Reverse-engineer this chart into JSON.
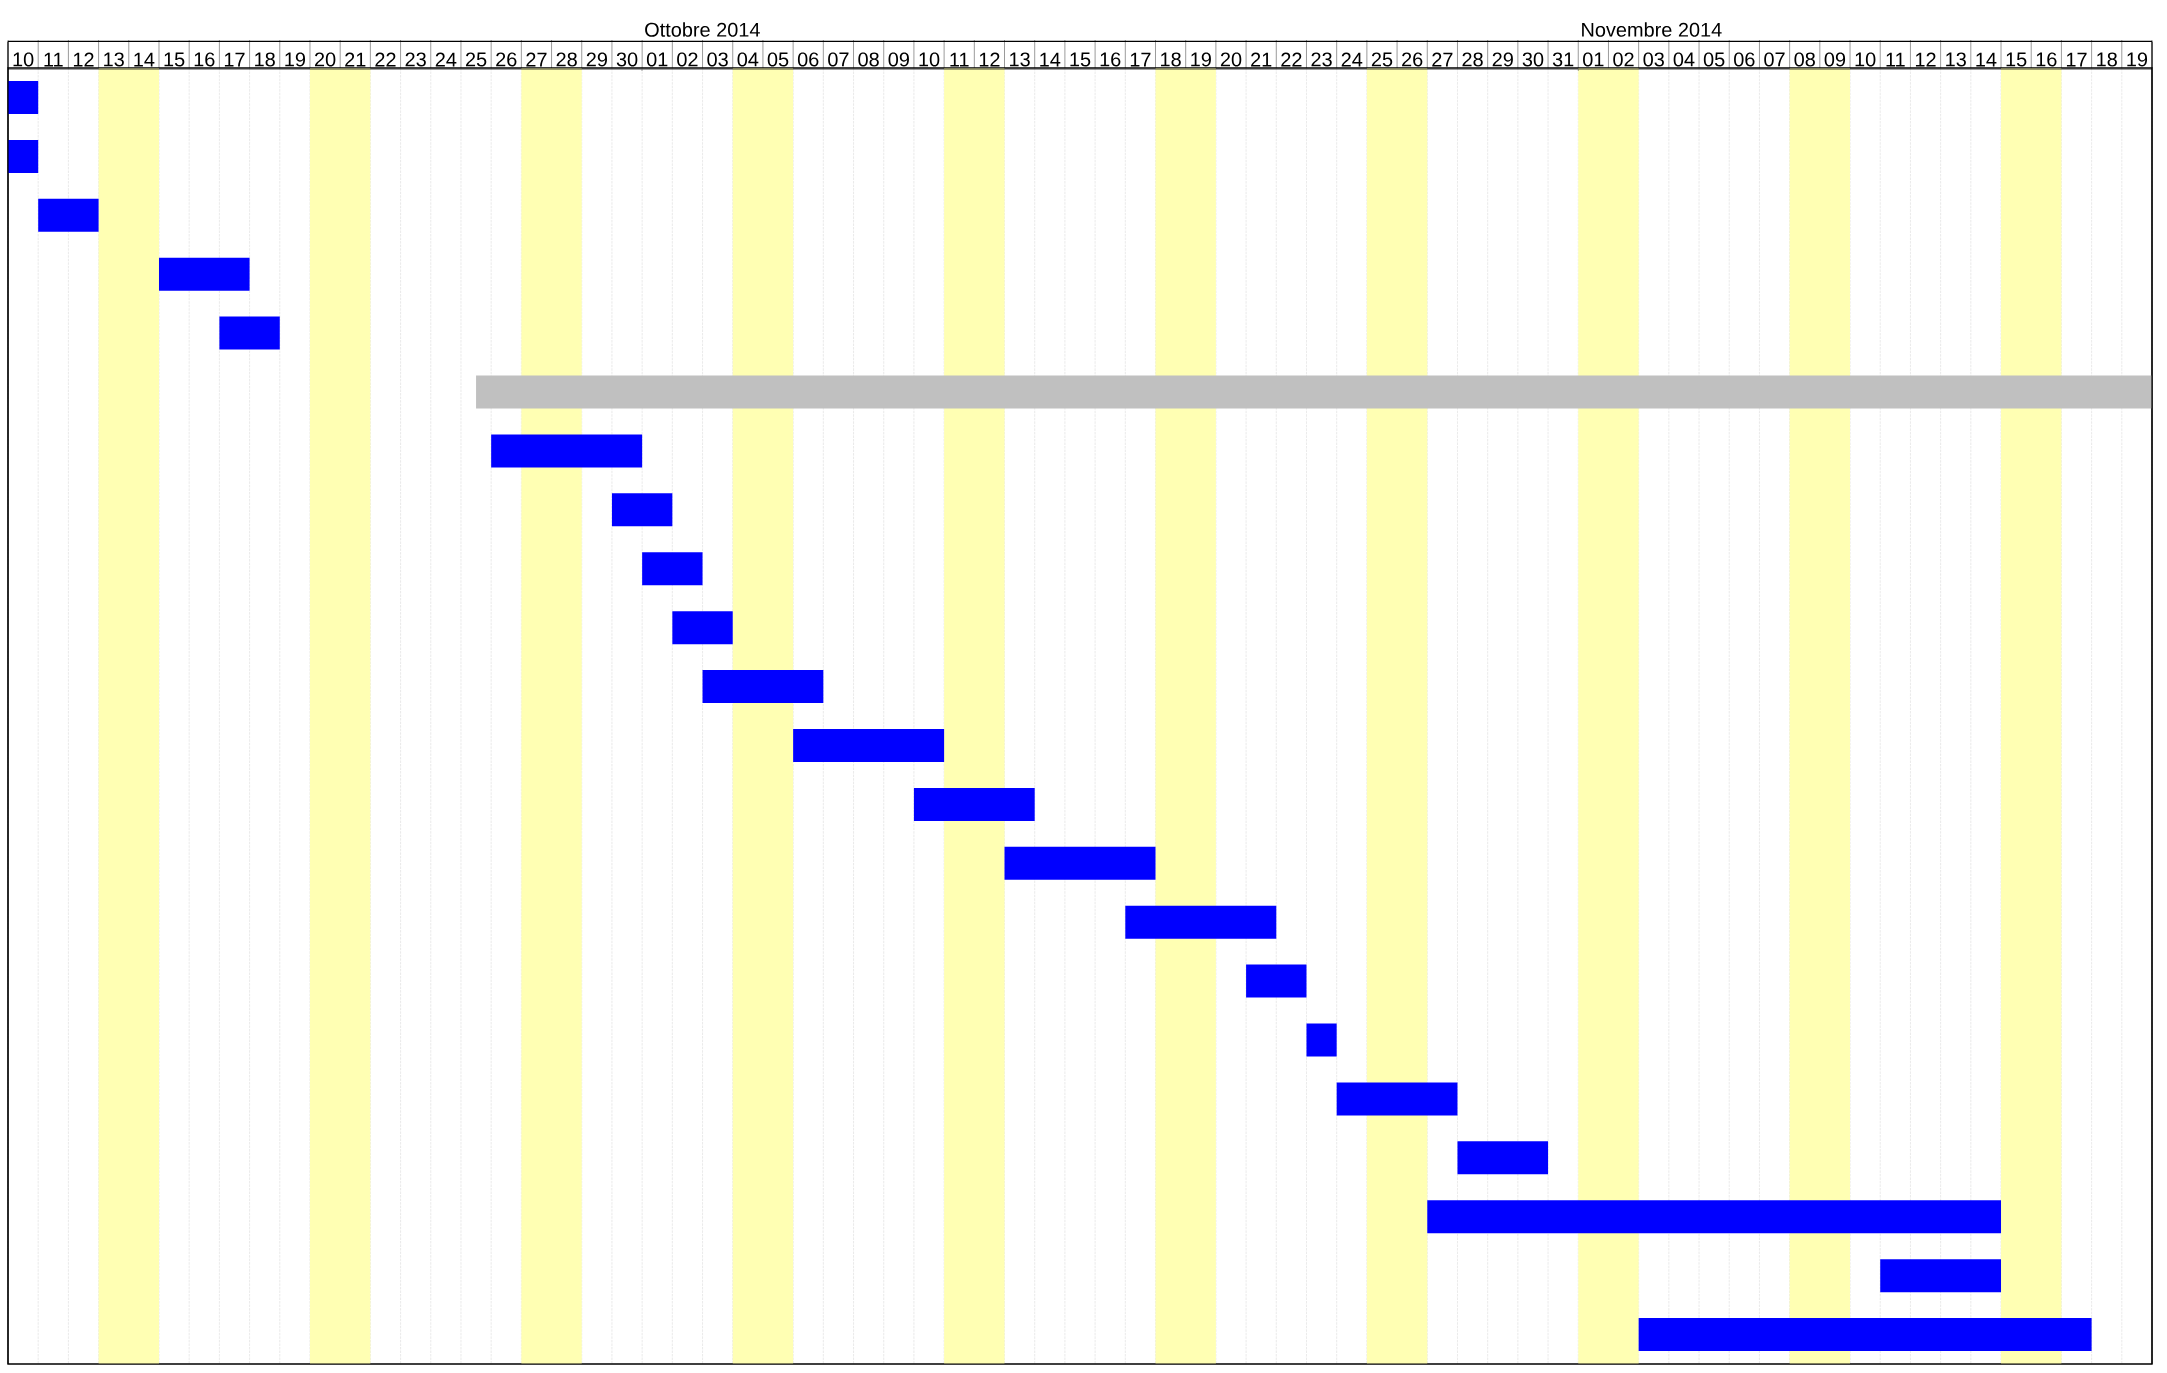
{
  "chart_data": {
    "type": "bar",
    "orientation": "horizontal",
    "categories": [
      null,
      null,
      null,
      null,
      null,
      null,
      null,
      null,
      null,
      null,
      null,
      null,
      null,
      null,
      null,
      null,
      null,
      null,
      null,
      null,
      null,
      null
    ],
    "base": [
      16323,
      16323,
      16324,
      16328,
      16330,
      16338.5,
      16339,
      16343,
      16344,
      16345,
      16346,
      16349,
      16353,
      16356,
      16360,
      16364,
      16366,
      16367,
      16371,
      16370,
      16385,
      16377
    ],
    "values": [
      1,
      1,
      2,
      3,
      2,
      55.5,
      5,
      2,
      2,
      2,
      4,
      5,
      4,
      5,
      5,
      2,
      1,
      4,
      3,
      19,
      4,
      15
    ],
    "colors": [
      "#0000ff",
      "#0000ff",
      "#0000ff",
      "#0000ff",
      "#0000ff",
      "#c0c0c0",
      "#0000ff",
      "#0000ff",
      "#0000ff",
      "#0000ff",
      "#0000ff",
      "#0000ff",
      "#0000ff",
      "#0000ff",
      "#0000ff",
      "#0000ff",
      "#0000ff",
      "#0000ff",
      "#0000ff",
      "#0000ff",
      "#0000ff",
      "#0000ff"
    ],
    "xlim": [
      "2014-09-10",
      "2014-11-20"
    ],
    "xticks": [
      {
        "value": "2014-09-10T12:00",
        "label": "10"
      },
      {
        "value": "2014-09-11T12:00",
        "label": "11"
      },
      {
        "value": "2014-09-12T12:00",
        "label": "12"
      },
      {
        "value": "2014-09-13T12:00",
        "label": "13"
      },
      {
        "value": "2014-09-14T12:00",
        "label": "14"
      },
      {
        "value": "2014-09-15T12:00",
        "label": "15"
      },
      {
        "value": "2014-09-16T12:00",
        "label": "16"
      },
      {
        "value": "2014-09-17T12:00",
        "label": "17"
      },
      {
        "value": "2014-09-18T12:00",
        "label": "18"
      },
      {
        "value": "2014-09-19T12:00",
        "label": "19"
      },
      {
        "value": "2014-09-20T12:00",
        "label": "20"
      },
      {
        "value": "2014-09-21T12:00",
        "label": "21"
      },
      {
        "value": "2014-09-22T12:00",
        "label": "22"
      },
      {
        "value": "2014-09-23T12:00",
        "label": "23"
      },
      {
        "value": "2014-09-24T12:00",
        "label": "24"
      },
      {
        "value": "2014-09-25T12:00",
        "label": "25"
      },
      {
        "value": "2014-09-26T12:00",
        "label": "26"
      },
      {
        "value": "2014-09-27T12:00",
        "label": "27"
      },
      {
        "value": "2014-09-28T12:00",
        "label": "28"
      },
      {
        "value": "2014-09-29T12:00",
        "label": "29"
      },
      {
        "value": "2014-09-30T12:00",
        "label": "30"
      },
      {
        "value": "2014-10-01T12:00",
        "label": "01"
      },
      {
        "value": "2014-10-02T12:00",
        "label": "02"
      },
      {
        "value": "2014-10-03T12:00",
        "label": "03"
      },
      {
        "value": "2014-10-04T12:00",
        "label": "04"
      },
      {
        "value": "2014-10-05T12:00",
        "label": "05"
      },
      {
        "value": "2014-10-06T12:00",
        "label": "06"
      },
      {
        "value": "2014-10-07T12:00",
        "label": "07"
      },
      {
        "value": "2014-10-08T12:00",
        "label": "08"
      },
      {
        "value": "2014-10-09T12:00",
        "label": "09"
      },
      {
        "value": "2014-10-10T12:00",
        "label": "10"
      },
      {
        "value": "2014-10-11T12:00",
        "label": "11"
      },
      {
        "value": "2014-10-12T12:00",
        "label": "12"
      },
      {
        "value": "2014-10-13T12:00",
        "label": "13"
      },
      {
        "value": "2014-10-14T12:00",
        "label": "14"
      },
      {
        "value": "2014-10-15T12:00",
        "label": "15"
      },
      {
        "value": "2014-10-16T12:00",
        "label": "16"
      },
      {
        "value": "2014-10-17T12:00",
        "label": "17"
      },
      {
        "value": "2014-10-18T12:00",
        "label": "18"
      },
      {
        "value": "2014-10-19T12:00",
        "label": "19"
      },
      {
        "value": "2014-10-20T12:00",
        "label": "20"
      },
      {
        "value": "2014-10-21T12:00",
        "label": "21"
      },
      {
        "value": "2014-10-22T12:00",
        "label": "22"
      },
      {
        "value": "2014-10-23T12:00",
        "label": "23"
      },
      {
        "value": "2014-10-24T12:00",
        "label": "24"
      },
      {
        "value": "2014-10-25T12:00",
        "label": "25"
      },
      {
        "value": "2014-10-26T12:00",
        "label": "26"
      },
      {
        "value": "2014-10-27T12:00",
        "label": "27"
      },
      {
        "value": "2014-10-28T12:00",
        "label": "28"
      },
      {
        "value": "2014-10-29T12:00",
        "label": "29"
      },
      {
        "value": "2014-10-30T12:00",
        "label": "30"
      },
      {
        "value": "2014-10-31T12:00",
        "label": "31"
      },
      {
        "value": "2014-11-01T12:00",
        "label": "01"
      },
      {
        "value": "2014-11-02T12:00",
        "label": "02"
      },
      {
        "value": "2014-11-03T12:00",
        "label": "03"
      },
      {
        "value": "2014-11-04T12:00",
        "label": "04"
      },
      {
        "value": "2014-11-05T12:00",
        "label": "05"
      },
      {
        "value": "2014-11-06T12:00",
        "label": "06"
      },
      {
        "value": "2014-11-07T12:00",
        "label": "07"
      },
      {
        "value": "2014-11-08T12:00",
        "label": "08"
      },
      {
        "value": "2014-11-09T12:00",
        "label": "09"
      },
      {
        "value": "2014-11-10T12:00",
        "label": "10"
      },
      {
        "value": "2014-11-11T12:00",
        "label": "11"
      },
      {
        "value": "2014-11-12T12:00",
        "label": "12"
      },
      {
        "value": "2014-11-13T12:00",
        "label": "13"
      },
      {
        "value": "2014-11-14T12:00",
        "label": "14"
      },
      {
        "value": "2014-11-15T12:00",
        "label": "15"
      },
      {
        "value": "2014-11-16T12:00",
        "label": "16"
      },
      {
        "value": "2014-11-17T12:00",
        "label": "17"
      },
      {
        "value": "2014-11-18T12:00",
        "label": "18"
      },
      {
        "value": "2014-11-19T12:00",
        "label": "19"
      }
    ],
    "annotations": [
      "Ottobre 2014",
      "Novembre 2014"
    ],
    "bands": [
      {
        "axis": "x",
        "from": "2014-09-13",
        "to": "2014-09-15",
        "color": "#ffffb3"
      },
      {
        "axis": "x",
        "from": "2014-09-20",
        "to": "2014-09-22",
        "color": "#ffffb3"
      },
      {
        "axis": "x",
        "from": "2014-09-27",
        "to": "2014-09-29",
        "color": "#ffffb3"
      },
      {
        "axis": "x",
        "from": "2014-10-04",
        "to": "2014-10-06",
        "color": "#ffffb3"
      },
      {
        "axis": "x",
        "from": "2014-10-11",
        "to": "2014-10-13",
        "color": "#ffffb3"
      },
      {
        "axis": "x",
        "from": "2014-10-18",
        "to": "2014-10-20",
        "color": "#ffffb3"
      },
      {
        "axis": "x",
        "from": "2014-10-25",
        "to": "2014-10-27",
        "color": "#ffffb3"
      },
      {
        "axis": "x",
        "from": "2014-11-01",
        "to": "2014-11-03",
        "color": "#ffffb3"
      },
      {
        "axis": "x",
        "from": "2014-11-08",
        "to": "2014-11-10",
        "color": "#ffffb3"
      },
      {
        "axis": "x",
        "from": "2014-11-15",
        "to": "2014-11-17",
        "color": "#ffffb3"
      }
    ],
    "grid": true,
    "tick_labels": "x"
  }
}
